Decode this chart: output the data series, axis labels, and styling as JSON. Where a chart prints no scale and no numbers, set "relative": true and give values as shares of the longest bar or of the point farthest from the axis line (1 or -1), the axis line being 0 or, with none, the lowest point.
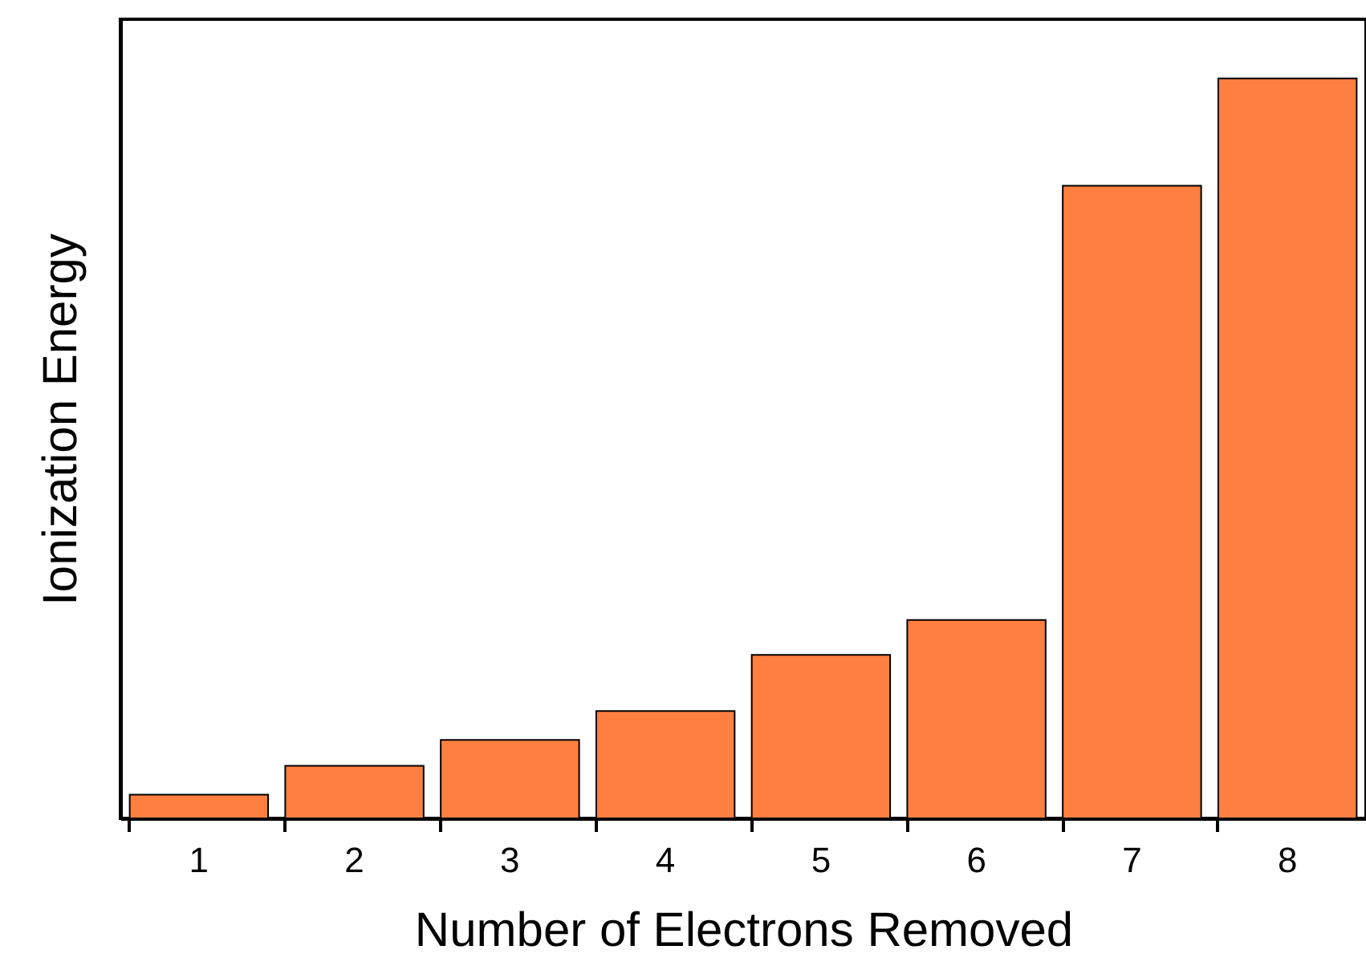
{
  "chart_data": {
    "type": "bar",
    "xlabel": "Number of Electrons Removed",
    "ylabel": "Ionization Energy",
    "relative": true,
    "categories": [
      "1",
      "2",
      "3",
      "4",
      "5",
      "6",
      "7",
      "8"
    ],
    "values": [
      0.032,
      0.071,
      0.106,
      0.145,
      0.221,
      0.268,
      0.855,
      1
    ],
    "color": "#ff7f41",
    "grid": false
  }
}
